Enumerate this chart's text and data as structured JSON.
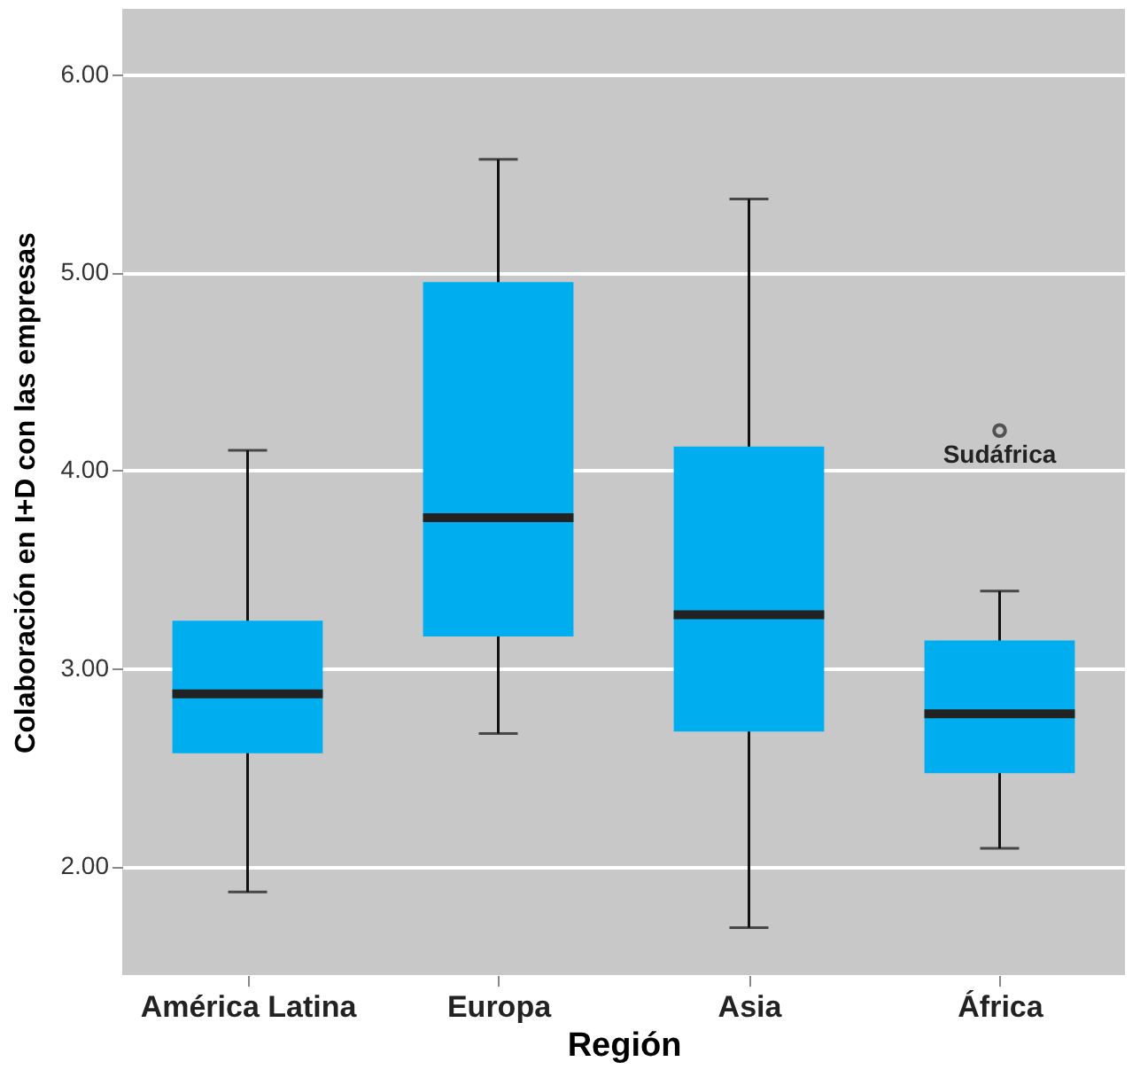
{
  "chart_data": {
    "type": "box",
    "xlabel": "Región",
    "ylabel": "Colaboración en I+D con las empresas",
    "categories": [
      "América Latina",
      "Europa",
      "Asia",
      "África"
    ],
    "boxes": [
      {
        "low": 1.87,
        "q1": 2.57,
        "median": 2.87,
        "q3": 3.24,
        "high": 4.1
      },
      {
        "low": 2.67,
        "q1": 3.16,
        "median": 3.76,
        "q3": 4.95,
        "high": 5.57
      },
      {
        "low": 1.69,
        "q1": 2.68,
        "median": 3.27,
        "q3": 4.12,
        "high": 5.37
      },
      {
        "low": 2.09,
        "q1": 2.47,
        "median": 2.77,
        "q3": 3.14,
        "high": 3.39,
        "outliers": [
          4.2
        ]
      }
    ],
    "color": "#00aeef",
    "annotations": [
      "Sudáfrica"
    ],
    "ylim": [
      1.45,
      6.33
    ],
    "yticks": [
      {
        "value": 2,
        "label": "2.00"
      },
      {
        "value": 3,
        "label": "3.00"
      },
      {
        "value": 4,
        "label": "4.00"
      },
      {
        "value": 5,
        "label": "5.00"
      },
      {
        "value": 6,
        "label": "6.00"
      }
    ],
    "grid": "y"
  }
}
